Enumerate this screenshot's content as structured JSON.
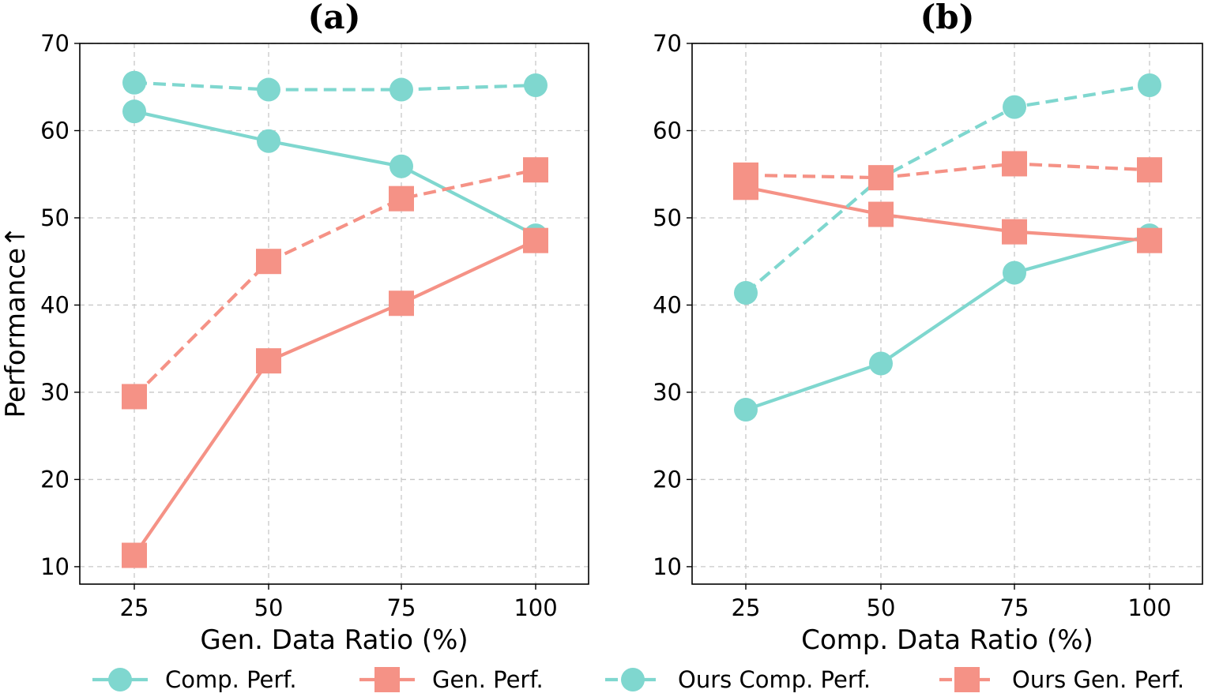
{
  "colors": {
    "comp": "#7fd7cf",
    "gen": "#f59286"
  },
  "legend": [
    {
      "label": "Comp. Perf.",
      "color": "#7fd7cf",
      "marker": "circle",
      "dash": "solid"
    },
    {
      "label": "Gen. Perf.",
      "color": "#f59286",
      "marker": "square",
      "dash": "solid"
    },
    {
      "label": "Ours Comp. Perf.",
      "color": "#7fd7cf",
      "marker": "circle",
      "dash": "dashed"
    },
    {
      "label": "Ours Gen. Perf.",
      "color": "#f59286",
      "marker": "square",
      "dash": "dashed"
    }
  ],
  "chart_data": [
    {
      "type": "line",
      "title": "(a)",
      "xlabel": "Gen. Data Ratio (%)",
      "ylabel": "Performance↑",
      "categories": [
        "25",
        "50",
        "75",
        "100"
      ],
      "ylim": [
        8,
        70
      ],
      "yticks": [
        10,
        20,
        30,
        40,
        50,
        60,
        70
      ],
      "grid": true,
      "series": [
        {
          "name": "Comp. Perf.",
          "color": "#7fd7cf",
          "marker": "circle",
          "dash": "solid",
          "values": [
            62.2,
            58.8,
            55.9,
            48.0
          ]
        },
        {
          "name": "Gen. Perf.",
          "color": "#f59286",
          "marker": "square",
          "dash": "solid",
          "values": [
            11.3,
            33.6,
            40.2,
            47.4
          ]
        },
        {
          "name": "Ours Comp. Perf.",
          "color": "#7fd7cf",
          "marker": "circle",
          "dash": "dashed",
          "values": [
            65.5,
            64.7,
            64.7,
            65.2
          ]
        },
        {
          "name": "Ours Gen. Perf.",
          "color": "#f59286",
          "marker": "square",
          "dash": "dashed",
          "values": [
            29.5,
            45.0,
            52.2,
            55.5
          ]
        }
      ]
    },
    {
      "type": "line",
      "title": "(b)",
      "xlabel": "Comp. Data Ratio (%)",
      "ylabel": "",
      "categories": [
        "25",
        "50",
        "75",
        "100"
      ],
      "ylim": [
        8,
        70
      ],
      "yticks": [
        10,
        20,
        30,
        40,
        50,
        60,
        70
      ],
      "grid": true,
      "series": [
        {
          "name": "Comp. Perf.",
          "color": "#7fd7cf",
          "marker": "circle",
          "dash": "solid",
          "values": [
            28.0,
            33.3,
            43.7,
            48.0
          ]
        },
        {
          "name": "Gen. Perf.",
          "color": "#f59286",
          "marker": "square",
          "dash": "solid",
          "values": [
            53.5,
            50.4,
            48.4,
            47.4
          ]
        },
        {
          "name": "Ours Comp. Perf.",
          "color": "#7fd7cf",
          "marker": "circle",
          "dash": "dashed",
          "values": [
            41.4,
            54.6,
            62.7,
            65.2
          ]
        },
        {
          "name": "Ours Gen. Perf.",
          "color": "#f59286",
          "marker": "square",
          "dash": "dashed",
          "values": [
            54.9,
            54.6,
            56.2,
            55.5
          ]
        }
      ]
    }
  ]
}
